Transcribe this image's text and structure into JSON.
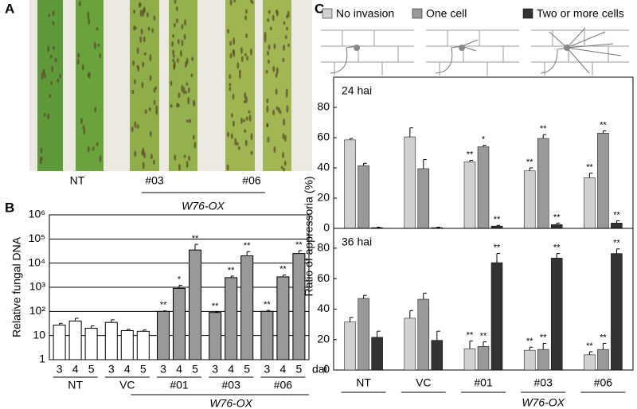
{
  "panel_labels": [
    "A",
    "B",
    "C"
  ],
  "panel_a": {
    "labels": [
      "NT",
      "#03",
      "#06"
    ],
    "group_label": "W76-OX"
  },
  "chart_data": [
    {
      "type": "bar",
      "y_label": "Relative fungal DNA",
      "log_scale": true,
      "grid": true,
      "categories": [
        "3",
        "4",
        "5",
        "3",
        "4",
        "5",
        "3",
        "4",
        "5",
        "3",
        "4",
        "5",
        "3",
        "4",
        "5"
      ],
      "groups": [
        "NT",
        "VC",
        "#01",
        "#03",
        "#06"
      ],
      "group_label": "W76-OX",
      "x_unit": "dai",
      "ylim": [
        1,
        1000000
      ],
      "yticks": [
        1,
        10,
        {
          "value": 100,
          "label": "10²"
        },
        {
          "value": 1000,
          "label": "10³"
        },
        {
          "value": 10000,
          "label": "10⁴"
        },
        {
          "value": 100000,
          "label": "10⁵"
        },
        {
          "value": 1000000,
          "label": "10⁶"
        }
      ],
      "colors": [
        "#ffffff",
        "#ffffff",
        "#ffffff",
        "#ffffff",
        "#ffffff",
        "#ffffff",
        "#999999",
        "#999999",
        "#999999",
        "#999999",
        "#999999",
        "#999999",
        "#999999",
        "#999999",
        "#999999"
      ],
      "values": [
        27,
        40,
        20,
        35,
        16,
        15,
        100,
        900,
        35000,
        90,
        2500,
        20000,
        100,
        2700,
        25000
      ],
      "errors": [
        5,
        12,
        5,
        10,
        2,
        2,
        5,
        300,
        25000,
        5,
        400,
        10000,
        10,
        500,
        8000
      ],
      "significance": [
        null,
        null,
        null,
        null,
        null,
        null,
        "**",
        "*",
        "**",
        "**",
        "**",
        "**",
        "**",
        "**",
        "**"
      ]
    },
    {
      "type": "bar",
      "title": "24 hai",
      "y_label": "Ratio of appressoria (%)",
      "categories": [
        null,
        null,
        null,
        null,
        null
      ],
      "ylim": [
        0,
        100
      ],
      "yticks": [
        0,
        20,
        40,
        60,
        80
      ],
      "series": [
        {
          "name": "No invasion",
          "color": "#d0d0d0",
          "values": [
            58.5,
            60.5,
            44,
            38,
            33.5
          ],
          "errors": [
            1,
            6,
            1,
            2,
            3
          ],
          "significance": [
            null,
            null,
            "**",
            "**",
            "**"
          ]
        },
        {
          "name": "One cell",
          "color": "#999999",
          "values": [
            41.5,
            39.5,
            54,
            59.5,
            63
          ],
          "errors": [
            1.5,
            6,
            1,
            2.5,
            1.5
          ],
          "significance": [
            null,
            null,
            "*",
            "**",
            "**"
          ]
        },
        {
          "name": "Two or more cells",
          "color": "#333333",
          "values": [
            0.5,
            0.5,
            1.5,
            2.5,
            3.5
          ],
          "errors": [
            0.3,
            0.3,
            0.5,
            1,
            1.5
          ],
          "significance": [
            null,
            null,
            "**",
            "**",
            "**"
          ]
        }
      ]
    },
    {
      "type": "bar",
      "title": "36 hai",
      "categories": [
        "NT",
        "VC",
        "#01",
        "#03",
        "#06"
      ],
      "group_label": "W76-OX",
      "ylim": [
        0,
        93
      ],
      "yticks": [
        0,
        20,
        40,
        60,
        80
      ],
      "series": [
        {
          "color": "#d0d0d0",
          "values": [
            31.5,
            34,
            14,
            13,
            10
          ],
          "errors": [
            3,
            5,
            5,
            2,
            2
          ],
          "significance": [
            null,
            null,
            "**",
            "**",
            "**"
          ]
        },
        {
          "color": "#999999",
          "values": [
            47,
            46.5,
            15.5,
            13.5,
            13.5
          ],
          "errors": [
            2,
            4,
            3,
            4,
            4
          ],
          "significance": [
            null,
            null,
            "**",
            "**",
            "**"
          ]
        },
        {
          "color": "#333333",
          "values": [
            21.5,
            19.5,
            70.5,
            73.5,
            76.5
          ],
          "errors": [
            4,
            6,
            6,
            3,
            3
          ],
          "significance": [
            null,
            null,
            "**",
            "**",
            "**"
          ]
        }
      ]
    }
  ]
}
